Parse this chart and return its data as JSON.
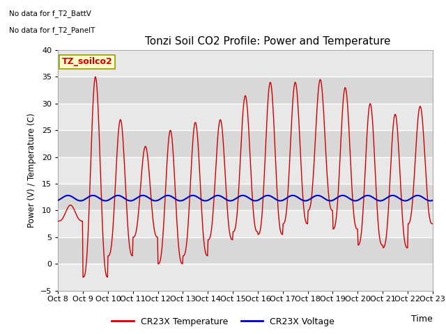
{
  "title": "Tonzi Soil CO2 Profile: Power and Temperature",
  "ylabel": "Power (V) / Temperature (C)",
  "xlabel": "Time",
  "ylim": [
    -5,
    40
  ],
  "yticks": [
    -5,
    0,
    5,
    10,
    15,
    20,
    25,
    30,
    35,
    40
  ],
  "annotation_line1": "No data for f_T2_BattV",
  "annotation_line2": "No data for f_T2_PanelT",
  "legend_box_label": "TZ_soilco2",
  "x_tick_labels": [
    "Oct 8",
    "Oct 9",
    "Oct 10",
    "Oct 11",
    "Oct 12",
    "Oct 13",
    "Oct 14",
    "Oct 15",
    "Oct 16",
    "Oct 17",
    "Oct 18",
    "Oct 19",
    "Oct 20",
    "Oct 21",
    "Oct 22",
    "Oct 23"
  ],
  "temp_color": "#cc0000",
  "volt_color": "#0000bb",
  "plot_bg_color": "#f0f0f0",
  "band_color_light": "#e8e8e8",
  "band_color_dark": "#d8d8d8",
  "legend_label_temp": "CR23X Temperature",
  "legend_label_volt": "CR23X Voltage",
  "peak_temps": [
    11,
    35,
    27,
    22,
    25,
    26.5,
    27,
    31.5,
    34,
    34,
    34.5,
    33,
    30,
    28,
    29.5
  ],
  "trough_temps": [
    8,
    -2.5,
    1.5,
    5,
    0,
    1.5,
    4.5,
    6,
    5.5,
    7.5,
    10,
    6.5,
    3.5,
    3,
    7.5
  ],
  "peak_phase": [
    0.45,
    0.45,
    0.45,
    0.45,
    0.45,
    0.45,
    0.45,
    0.45,
    0.45,
    0.45,
    0.45,
    0.45,
    0.45,
    0.45,
    0.45
  ]
}
